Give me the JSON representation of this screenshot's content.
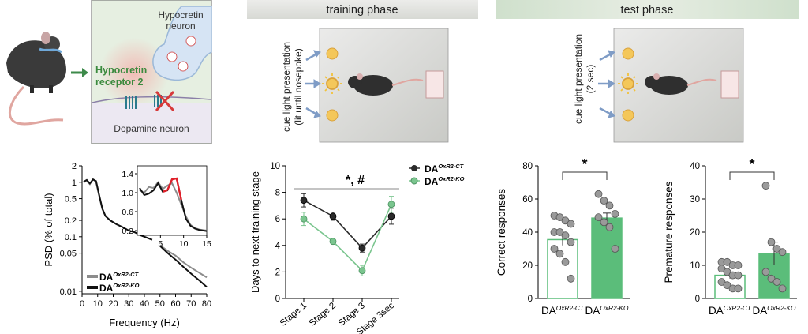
{
  "phases": {
    "training_header": "training phase",
    "test_header": "test phase",
    "training_cue_label": [
      "cue light presentation",
      "(lit until nosepoke)"
    ],
    "test_cue_label": [
      "cue light presentation",
      "(2 sec)"
    ]
  },
  "schematic": {
    "hypocretin_neuron": [
      "Hypocretin",
      "neuron"
    ],
    "receptor": [
      "Hypocretin",
      "receptor 2"
    ],
    "dopamine_neuron": "Dopamine neuron"
  },
  "colors": {
    "ct": "#2b2b2b",
    "ko": "#7ac58e",
    "ko_bar": "#5bbd7a",
    "psd_highlight": "#e0202a",
    "header_bg": "#e3e6df",
    "arena": "#d8d9d5",
    "cue": "#f4c75a"
  },
  "groups": {
    "ct_base": "DA",
    "ct_sup": "OxR2-CT",
    "ko_base": "DA",
    "ko_sup": "OxR2-KO"
  },
  "chart_data": [
    {
      "id": "psd",
      "type": "line",
      "xlabel": "Frequency (Hz)",
      "ylabel": "PSD (% of total)",
      "xlim": [
        0,
        80
      ],
      "xticks": [
        0,
        10,
        20,
        30,
        40,
        50,
        60,
        70,
        80
      ],
      "yscale": "log",
      "yticks": [
        0.01,
        0.05,
        0.1,
        0.2,
        0.5,
        1,
        2
      ],
      "yticklabels": [
        "0.01",
        "0.05",
        "0.1",
        "0.2",
        "0.5",
        "1",
        "2"
      ],
      "series": [
        {
          "name": "DA OxR2-CT",
          "x": [
            1,
            3,
            5,
            7,
            9,
            11,
            13,
            15,
            18,
            22,
            26,
            30,
            34,
            38,
            42,
            45,
            50,
            55,
            60,
            65,
            70,
            75,
            80
          ],
          "y": [
            1.0,
            1.05,
            0.92,
            1.15,
            1.0,
            0.55,
            0.32,
            0.24,
            0.2,
            0.17,
            0.15,
            0.13,
            0.12,
            0.105,
            0.095,
            0.088,
            0.07,
            0.055,
            0.045,
            0.034,
            0.027,
            0.022,
            0.018
          ]
        },
        {
          "name": "DA OxR2-KO",
          "x": [
            1,
            3,
            5,
            7,
            9,
            11,
            13,
            15,
            18,
            22,
            26,
            30,
            34,
            38,
            42,
            45,
            50,
            55,
            60,
            65,
            70,
            75,
            80
          ],
          "y": [
            1.02,
            1.1,
            0.95,
            1.12,
            1.05,
            0.58,
            0.33,
            0.24,
            0.2,
            0.17,
            0.15,
            0.13,
            0.12,
            0.105,
            0.095,
            0.088,
            0.068,
            0.05,
            0.038,
            0.028,
            0.021,
            0.016,
            0.012
          ]
        }
      ],
      "inset": {
        "xlim": [
          0,
          15
        ],
        "xticks": [
          5,
          10,
          15
        ],
        "ylim": [
          0.1,
          1.5
        ],
        "yticks": [
          0.2,
          0.6,
          1.0,
          1.4
        ],
        "yticklabels": [
          "0.2",
          "0.6",
          "1.0",
          "1.4"
        ],
        "series": [
          {
            "name": "DA OxR2-CT",
            "x": [
              0.5,
              1.5,
              2.5,
              3.5,
              4.5,
              5.5,
              6.5,
              7.5,
              8.5,
              9.5,
              10.5,
              11.5,
              12.5,
              13.5,
              15
            ],
            "y": [
              1.05,
              1.0,
              1.12,
              1.1,
              1.22,
              1.08,
              1.15,
              1.2,
              1.0,
              0.75,
              0.5,
              0.32,
              0.25,
              0.22,
              0.2
            ]
          },
          {
            "name": "DA OxR2-KO",
            "x": [
              0.5,
              1.5,
              2.5,
              3.5,
              4.5,
              5.5,
              6.5,
              7.5,
              8.5,
              9.5,
              10.5,
              11.5,
              12.5,
              13.5,
              15
            ],
            "y": [
              1.1,
              0.95,
              0.98,
              1.05,
              1.2,
              1.02,
              1.05,
              1.28,
              1.3,
              0.85,
              0.45,
              0.3,
              0.24,
              0.21,
              0.19
            ]
          }
        ],
        "highlight_ranges": [
          [
            5.5,
            6.5
          ],
          [
            6.5,
            9.5
          ]
        ]
      }
    },
    {
      "id": "training",
      "type": "line",
      "ylabel": "Days to next training stage",
      "categories": [
        "Stage 1",
        "Stage 2",
        "Stage 3",
        "Stage 3sec"
      ],
      "ylim": [
        0,
        10
      ],
      "yticks": [
        0,
        2,
        4,
        6,
        8,
        10
      ],
      "series": [
        {
          "name": "DA OxR2-CT",
          "values": [
            7.4,
            6.2,
            3.8,
            6.2
          ],
          "errors": [
            0.5,
            0.3,
            0.3,
            0.6
          ]
        },
        {
          "name": "DA OxR2-KO",
          "values": [
            6.0,
            4.3,
            2.1,
            7.1
          ],
          "errors": [
            0.5,
            0.2,
            0.4,
            0.6
          ]
        }
      ],
      "annotation": "*, #"
    },
    {
      "id": "correct",
      "type": "bar",
      "ylabel": "Correct responses",
      "ylim": [
        0,
        80
      ],
      "yticks": [
        0,
        20,
        40,
        60,
        80
      ],
      "values": [
        35.5,
        48.5
      ],
      "errors": [
        3.5,
        3.0
      ],
      "points": [
        [
          50,
          49,
          47,
          45,
          40,
          40,
          38,
          34,
          30,
          27,
          22,
          12
        ],
        [
          63,
          59,
          56,
          51,
          49,
          46,
          43,
          30
        ]
      ],
      "annotation": "*"
    },
    {
      "id": "premature",
      "type": "bar",
      "ylabel": "Premature responses",
      "ylim": [
        0,
        40
      ],
      "yticks": [
        0,
        10,
        20,
        30,
        40
      ],
      "values": [
        7.0,
        13.5
      ],
      "errors": [
        1.0,
        3.5
      ],
      "points": [
        [
          11,
          11,
          10,
          10,
          9,
          8,
          7,
          7,
          5,
          4,
          3,
          3
        ],
        [
          34,
          17,
          15,
          14,
          8,
          6,
          5,
          3
        ]
      ],
      "annotation": "*"
    }
  ]
}
